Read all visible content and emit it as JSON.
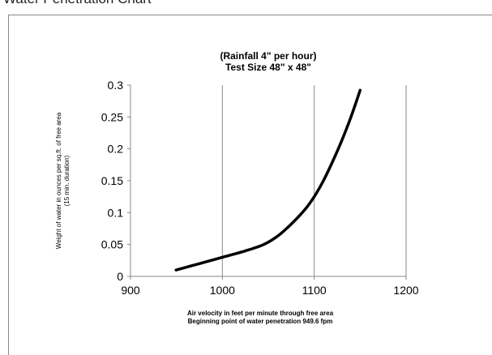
{
  "page": {
    "title": "Water Penetration Chart"
  },
  "chart_data": {
    "type": "line",
    "title_lines": [
      "(Rainfall 4\" per hour)",
      "Test Size 48\" x 48\""
    ],
    "xlabel_lines": [
      "Air velocity in feet per minute through free area",
      "Beginning point of water penetration 949.6 fpm"
    ],
    "ylabel_lines": [
      "Weight of water in ounces per sq.ft. of free area",
      "(15 min. duration)"
    ],
    "xlim": [
      900,
      1200
    ],
    "ylim": [
      0,
      0.3
    ],
    "x_ticks": [
      900,
      1000,
      1100,
      1200
    ],
    "x_tick_labels": [
      "900",
      "1000",
      "1100",
      "1200"
    ],
    "y_ticks": [
      0,
      0.05,
      0.1,
      0.15,
      0.2,
      0.25,
      0.3
    ],
    "y_tick_labels": [
      "0",
      "0.05",
      "0.1",
      "0.15",
      "0.2",
      "0.25",
      "0.3"
    ],
    "grid": "vertical",
    "series": [
      {
        "color": "#000000",
        "x": [
          949.6,
          975,
          1000,
          1025,
          1045,
          1060,
          1075,
          1090,
          1100,
          1110,
          1120,
          1130,
          1140,
          1150
        ],
        "y": [
          0.01,
          0.02,
          0.03,
          0.04,
          0.05,
          0.063,
          0.082,
          0.105,
          0.125,
          0.15,
          0.18,
          0.213,
          0.25,
          0.292
        ]
      }
    ]
  }
}
